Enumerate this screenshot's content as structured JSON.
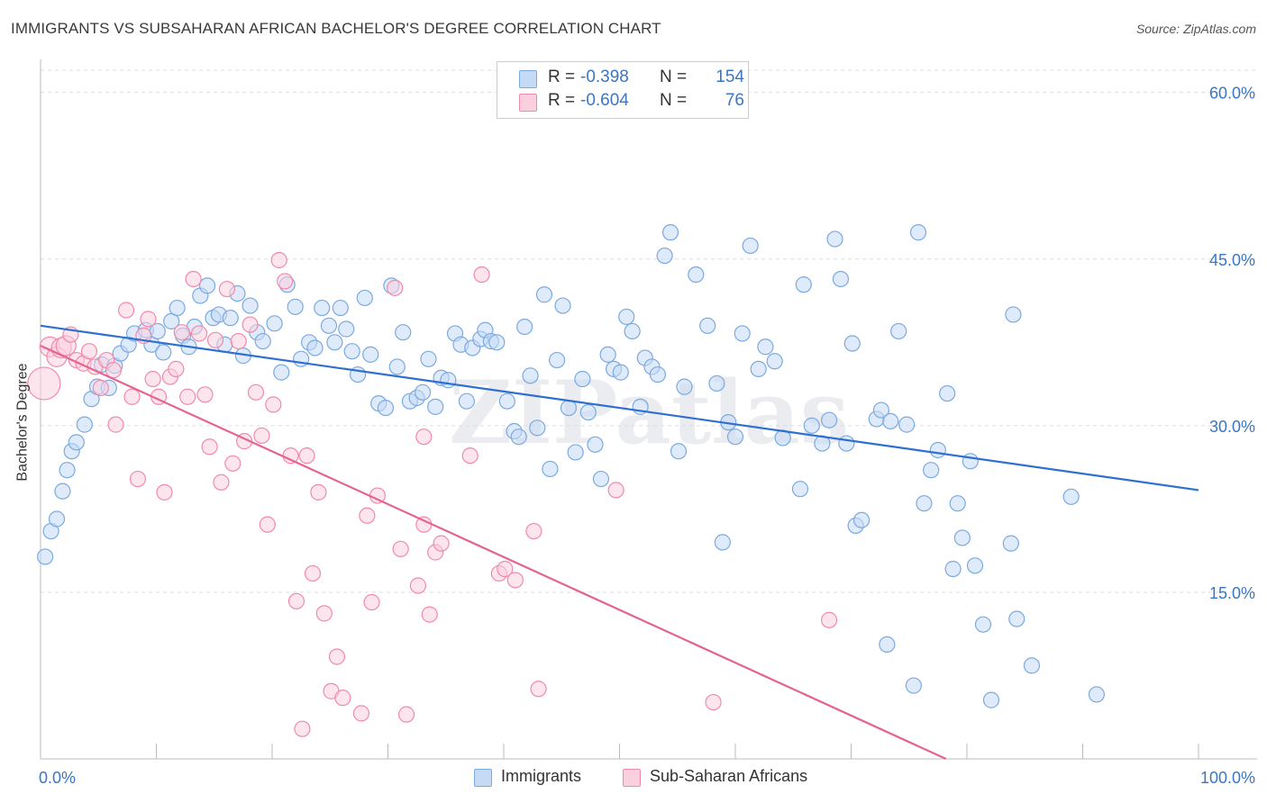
{
  "title": "IMMIGRANTS VS SUBSAHARAN AFRICAN BACHELOR'S DEGREE CORRELATION CHART",
  "source": "Source: ZipAtlas.com",
  "watermark": "ZIPatlas",
  "legend": {
    "r_label": "R =",
    "n_label": "N =",
    "rows": [
      {
        "r": "-0.398",
        "n": "154",
        "color": "#7aaae0",
        "fill": "#c5dbf5"
      },
      {
        "r": "-0.604",
        "n": "76",
        "color": "#f08aac",
        "fill": "#fbd0de"
      }
    ]
  },
  "colors": {
    "blue": "#3a76c4",
    "blue_line": "#2f6fd0",
    "pink_line": "#e4648f",
    "grid": "#dddddd"
  },
  "chart_data": {
    "type": "scatter",
    "title": "IMMIGRANTS VS SUBSAHARAN AFRICAN BACHELOR'S DEGREE CORRELATION CHART",
    "xlabel": "",
    "ylabel": "Bachelor's Degree",
    "xlim": [
      0,
      100
    ],
    "ylim": [
      0,
      62
    ],
    "x_tick_labels": [
      "0.0%",
      "100.0%"
    ],
    "y_ticks": [
      15,
      30,
      45,
      60
    ],
    "y_tick_labels": [
      "15.0%",
      "30.0%",
      "45.0%",
      "60.0%"
    ],
    "grid": true,
    "legend_position": "top-center",
    "series": [
      {
        "name": "Immigrants",
        "color": "#7aaae0",
        "trend": {
          "x0": 0,
          "y0": 39.0,
          "x1": 100,
          "y1": 24.2
        },
        "points": [
          [
            0.4,
            18.2
          ],
          [
            0.9,
            20.5
          ],
          [
            1.4,
            21.6
          ],
          [
            1.9,
            24.1
          ],
          [
            2.3,
            26.0
          ],
          [
            2.7,
            27.7
          ],
          [
            3.1,
            28.5
          ],
          [
            3.8,
            30.1
          ],
          [
            4.4,
            32.4
          ],
          [
            4.9,
            33.5
          ],
          [
            5.3,
            35.5
          ],
          [
            5.9,
            33.4
          ],
          [
            6.4,
            35.4
          ],
          [
            6.9,
            36.5
          ],
          [
            7.6,
            37.3
          ],
          [
            8.1,
            38.3
          ],
          [
            9.1,
            38.6
          ],
          [
            9.6,
            37.3
          ],
          [
            10.1,
            38.5
          ],
          [
            10.6,
            36.6
          ],
          [
            11.3,
            39.4
          ],
          [
            11.8,
            40.6
          ],
          [
            12.3,
            38.1
          ],
          [
            12.8,
            37.1
          ],
          [
            13.3,
            38.9
          ],
          [
            13.8,
            41.7
          ],
          [
            14.4,
            42.6
          ],
          [
            14.9,
            39.7
          ],
          [
            15.4,
            40.0
          ],
          [
            15.9,
            37.3
          ],
          [
            16.4,
            39.7
          ],
          [
            17.0,
            41.9
          ],
          [
            17.5,
            36.3
          ],
          [
            18.1,
            40.8
          ],
          [
            18.7,
            38.4
          ],
          [
            19.2,
            37.6
          ],
          [
            20.2,
            39.2
          ],
          [
            20.8,
            34.8
          ],
          [
            21.3,
            42.7
          ],
          [
            22.0,
            40.7
          ],
          [
            22.5,
            36.0
          ],
          [
            23.2,
            37.5
          ],
          [
            23.7,
            37.0
          ],
          [
            24.3,
            40.6
          ],
          [
            24.9,
            39.0
          ],
          [
            25.4,
            37.5
          ],
          [
            25.9,
            40.6
          ],
          [
            26.4,
            38.7
          ],
          [
            26.9,
            36.7
          ],
          [
            27.4,
            34.6
          ],
          [
            28.0,
            41.5
          ],
          [
            28.5,
            36.4
          ],
          [
            29.2,
            32.0
          ],
          [
            29.8,
            31.6
          ],
          [
            30.3,
            42.6
          ],
          [
            30.8,
            35.3
          ],
          [
            31.3,
            38.4
          ],
          [
            31.9,
            32.2
          ],
          [
            32.5,
            32.5
          ],
          [
            33.0,
            33.0
          ],
          [
            33.5,
            36.0
          ],
          [
            34.1,
            31.7
          ],
          [
            34.6,
            34.3
          ],
          [
            35.2,
            34.1
          ],
          [
            35.8,
            38.3
          ],
          [
            36.3,
            37.3
          ],
          [
            36.8,
            32.2
          ],
          [
            37.3,
            37.0
          ],
          [
            38.0,
            37.8
          ],
          [
            38.4,
            38.6
          ],
          [
            38.9,
            37.6
          ],
          [
            39.4,
            37.5
          ],
          [
            40.3,
            32.2
          ],
          [
            40.9,
            29.5
          ],
          [
            41.3,
            29.0
          ],
          [
            41.8,
            38.9
          ],
          [
            42.3,
            34.5
          ],
          [
            42.9,
            29.8
          ],
          [
            43.5,
            41.8
          ],
          [
            44.0,
            26.1
          ],
          [
            44.6,
            35.9
          ],
          [
            45.1,
            40.8
          ],
          [
            45.6,
            31.6
          ],
          [
            46.2,
            27.6
          ],
          [
            46.8,
            34.2
          ],
          [
            47.3,
            31.2
          ],
          [
            47.9,
            28.3
          ],
          [
            48.4,
            25.2
          ],
          [
            49.0,
            36.4
          ],
          [
            49.5,
            35.1
          ],
          [
            50.1,
            34.8
          ],
          [
            50.6,
            39.8
          ],
          [
            51.1,
            38.5
          ],
          [
            51.8,
            31.7
          ],
          [
            52.2,
            36.1
          ],
          [
            52.8,
            35.3
          ],
          [
            53.3,
            34.6
          ],
          [
            53.9,
            45.3
          ],
          [
            54.4,
            47.4
          ],
          [
            55.1,
            27.7
          ],
          [
            55.6,
            33.5
          ],
          [
            56.6,
            43.6
          ],
          [
            57.6,
            39.0
          ],
          [
            58.4,
            33.8
          ],
          [
            58.9,
            19.5
          ],
          [
            59.4,
            30.3
          ],
          [
            60.0,
            29.0
          ],
          [
            60.6,
            38.3
          ],
          [
            61.3,
            46.2
          ],
          [
            62.0,
            35.1
          ],
          [
            62.6,
            37.1
          ],
          [
            63.4,
            35.8
          ],
          [
            64.1,
            28.9
          ],
          [
            65.6,
            24.3
          ],
          [
            65.9,
            42.7
          ],
          [
            66.6,
            30.0
          ],
          [
            67.5,
            28.4
          ],
          [
            68.1,
            30.5
          ],
          [
            68.6,
            46.8
          ],
          [
            69.1,
            43.2
          ],
          [
            69.6,
            28.4
          ],
          [
            70.1,
            37.4
          ],
          [
            70.4,
            21.0
          ],
          [
            70.9,
            21.5
          ],
          [
            72.2,
            30.6
          ],
          [
            72.6,
            31.4
          ],
          [
            73.1,
            10.3
          ],
          [
            73.4,
            30.4
          ],
          [
            74.1,
            38.5
          ],
          [
            74.8,
            30.1
          ],
          [
            75.4,
            6.6
          ],
          [
            75.8,
            47.4
          ],
          [
            76.3,
            23.0
          ],
          [
            76.9,
            26.0
          ],
          [
            77.5,
            27.8
          ],
          [
            78.3,
            32.9
          ],
          [
            78.8,
            17.1
          ],
          [
            79.2,
            23.0
          ],
          [
            79.6,
            19.9
          ],
          [
            80.3,
            26.8
          ],
          [
            80.7,
            17.4
          ],
          [
            81.4,
            12.1
          ],
          [
            82.1,
            5.3
          ],
          [
            83.8,
            19.4
          ],
          [
            84.0,
            40.0
          ],
          [
            84.3,
            12.6
          ],
          [
            85.6,
            8.4
          ],
          [
            89.0,
            23.6
          ],
          [
            91.2,
            5.8
          ]
        ]
      },
      {
        "name": "Sub-Saharan Africans",
        "color": "#f08aac",
        "trend": {
          "x0": 0,
          "y0": 37.2,
          "x1": 78.2,
          "y1": 0
        },
        "points": [
          [
            0.3,
            33.8
          ],
          [
            0.8,
            37.1
          ],
          [
            1.4,
            36.2
          ],
          [
            1.8,
            37.0
          ],
          [
            2.2,
            37.2
          ],
          [
            2.6,
            38.2
          ],
          [
            3.1,
            35.9
          ],
          [
            3.7,
            35.6
          ],
          [
            4.2,
            36.7
          ],
          [
            4.7,
            35.3
          ],
          [
            5.2,
            33.4
          ],
          [
            5.7,
            35.9
          ],
          [
            6.3,
            35.0
          ],
          [
            6.5,
            30.1
          ],
          [
            7.4,
            40.4
          ],
          [
            7.9,
            32.6
          ],
          [
            8.4,
            25.2
          ],
          [
            8.9,
            38.1
          ],
          [
            9.3,
            39.6
          ],
          [
            9.7,
            34.2
          ],
          [
            10.2,
            32.6
          ],
          [
            10.7,
            24.0
          ],
          [
            11.2,
            34.4
          ],
          [
            11.7,
            35.1
          ],
          [
            12.2,
            38.4
          ],
          [
            12.7,
            32.6
          ],
          [
            13.2,
            43.2
          ],
          [
            13.7,
            38.3
          ],
          [
            14.2,
            32.8
          ],
          [
            14.6,
            28.1
          ],
          [
            15.1,
            37.7
          ],
          [
            15.6,
            24.9
          ],
          [
            16.1,
            42.3
          ],
          [
            16.6,
            26.6
          ],
          [
            17.1,
            37.6
          ],
          [
            17.6,
            28.6
          ],
          [
            18.1,
            39.1
          ],
          [
            18.6,
            33.0
          ],
          [
            19.1,
            29.1
          ],
          [
            19.6,
            21.1
          ],
          [
            20.1,
            31.9
          ],
          [
            20.6,
            44.9
          ],
          [
            21.1,
            43.0
          ],
          [
            21.6,
            27.3
          ],
          [
            22.1,
            14.2
          ],
          [
            22.6,
            2.7
          ],
          [
            23.0,
            27.3
          ],
          [
            23.5,
            16.7
          ],
          [
            24.0,
            24.0
          ],
          [
            24.5,
            13.1
          ],
          [
            25.1,
            6.1
          ],
          [
            25.6,
            9.2
          ],
          [
            26.1,
            5.5
          ],
          [
            27.7,
            4.1
          ],
          [
            28.2,
            21.9
          ],
          [
            28.6,
            14.1
          ],
          [
            29.1,
            23.7
          ],
          [
            30.6,
            42.4
          ],
          [
            31.1,
            18.9
          ],
          [
            31.6,
            4.0
          ],
          [
            32.6,
            15.6
          ],
          [
            33.1,
            21.1
          ],
          [
            33.6,
            13.0
          ],
          [
            34.1,
            18.6
          ],
          [
            34.6,
            19.4
          ],
          [
            37.1,
            27.3
          ],
          [
            38.1,
            43.6
          ],
          [
            39.6,
            16.7
          ],
          [
            40.1,
            17.1
          ],
          [
            41.0,
            16.1
          ],
          [
            42.6,
            20.5
          ],
          [
            43.0,
            6.3
          ],
          [
            49.7,
            24.2
          ],
          [
            58.1,
            5.1
          ],
          [
            68.1,
            12.5
          ],
          [
            33.1,
            29.0
          ]
        ]
      }
    ]
  }
}
